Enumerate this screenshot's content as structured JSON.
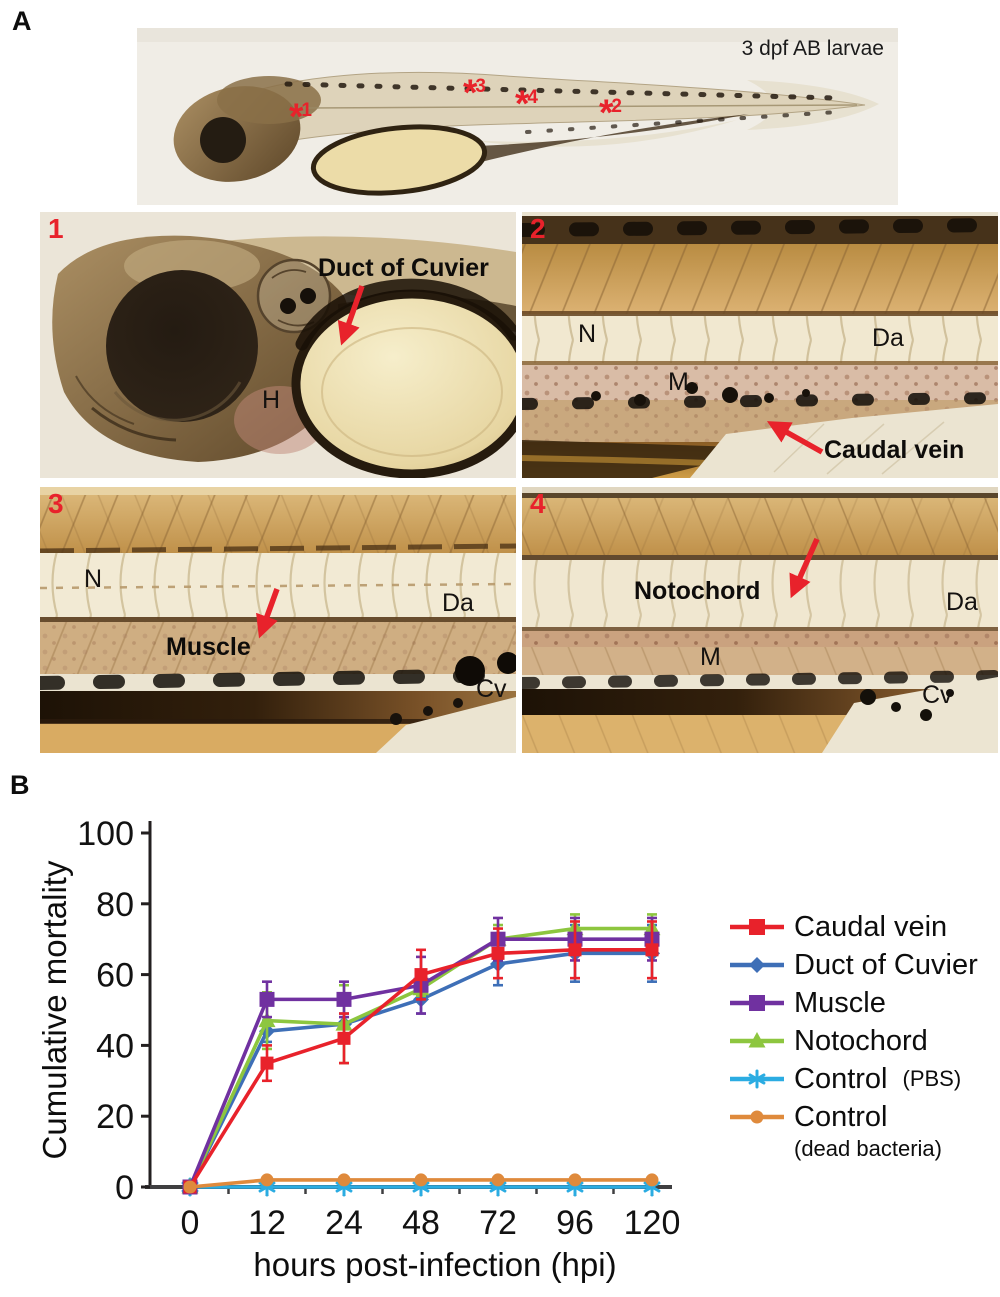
{
  "accent_red": "#e8222b",
  "panelA": {
    "label": "A",
    "overview": {
      "caption": "3 dpf AB larvae",
      "asterisks": [
        {
          "star": "*",
          "num": "1"
        },
        {
          "star": "*",
          "num": "3"
        },
        {
          "star": "*",
          "num": "4"
        },
        {
          "star": "*",
          "num": "2"
        }
      ]
    },
    "inset1": {
      "num": "1",
      "annotation": "Duct of Cuvier",
      "h": "H"
    },
    "inset2": {
      "num": "2",
      "n": "N",
      "da": "Da",
      "m": "M",
      "annotation": "Caudal vein"
    },
    "inset3": {
      "num": "3",
      "n": "N",
      "da": "Da",
      "annotation": "Muscle",
      "cv": "Cv"
    },
    "inset4": {
      "num": "4",
      "annotation": "Notochord",
      "da": "Da",
      "m": "M",
      "cv": "Cv"
    }
  },
  "panelB": {
    "label": "B"
  },
  "chart_data": {
    "type": "line",
    "title": "",
    "xlabel": "hours post-infection (hpi)",
    "ylabel": "Cumulative mortality",
    "categories": [
      "0",
      "12",
      "24",
      "48",
      "72",
      "96",
      "120"
    ],
    "ylim": [
      0,
      100
    ],
    "yticks": [
      0,
      20,
      40,
      60,
      80,
      100
    ],
    "grid": false,
    "legend_position": "right",
    "series": [
      {
        "name": "Caudal vein",
        "color": "#e8222b",
        "marker": "square",
        "values": [
          0,
          35,
          42,
          60,
          66,
          67,
          67
        ],
        "errors": [
          0,
          5,
          7,
          7,
          7,
          8,
          8
        ]
      },
      {
        "name": "Duct of Cuvier",
        "color": "#3e6fb7",
        "marker": "diamond",
        "values": [
          0,
          44,
          46,
          53,
          63,
          66,
          66
        ],
        "errors": [
          0,
          3,
          3,
          4,
          6,
          8,
          8
        ]
      },
      {
        "name": "Muscle",
        "color": "#7031a0",
        "marker": "square",
        "values": [
          0,
          53,
          53,
          57,
          70,
          70,
          70
        ],
        "errors": [
          0,
          5,
          5,
          8,
          6,
          6,
          6
        ]
      },
      {
        "name": "Notochord",
        "color": "#8dc63f",
        "marker": "triangle-up",
        "values": [
          0,
          47,
          46,
          56,
          70,
          73,
          73
        ],
        "errors": [
          0,
          8,
          11,
          2,
          4,
          4,
          4
        ]
      },
      {
        "name": "Control (PBS)",
        "color": "#2bace2",
        "marker": "asterisk",
        "values": [
          0,
          0,
          0,
          0,
          0,
          0,
          0
        ],
        "errors": [
          0,
          0,
          0,
          0,
          0,
          0,
          0
        ]
      },
      {
        "name": "Control (dead bacteria)",
        "color": "#df8a3c",
        "marker": "circle",
        "values": [
          0,
          2,
          2,
          2,
          2,
          2,
          2
        ],
        "errors": [
          0,
          0,
          0,
          0,
          0,
          0,
          0
        ]
      }
    ],
    "legend": [
      {
        "label": "Caudal vein",
        "series": 0
      },
      {
        "label": "Duct of Cuvier",
        "series": 1
      },
      {
        "label": "Muscle",
        "series": 2
      },
      {
        "label": "Notochord",
        "series": 3
      },
      {
        "label": "Control",
        "suffix": "(PBS)",
        "series": 4
      },
      {
        "label": "Control",
        "below": "(dead bacteria)",
        "series": 5
      }
    ]
  }
}
